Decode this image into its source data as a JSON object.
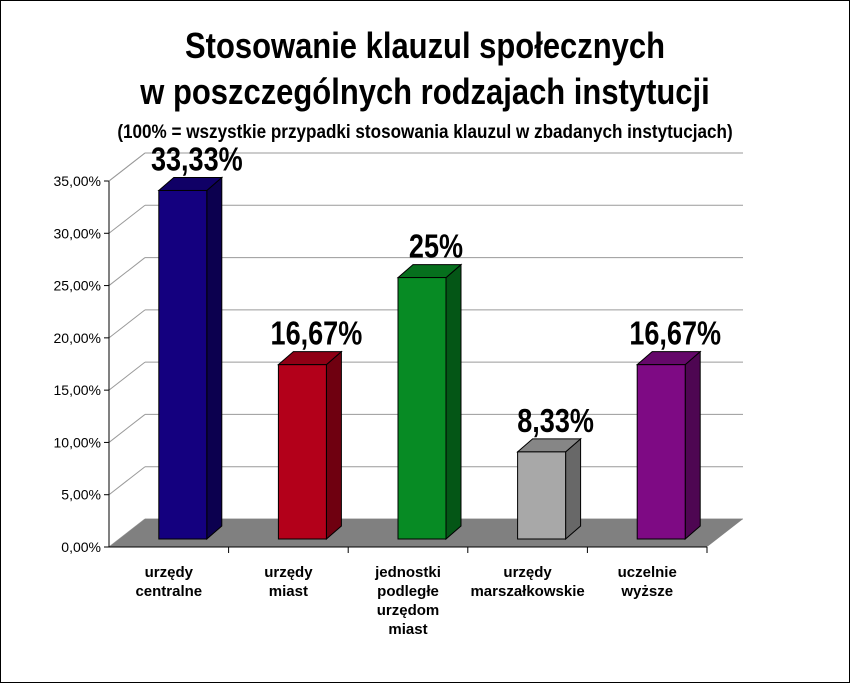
{
  "title_lines": [
    "Stosowanie klauzul społecznych",
    "w poszczególnych rodzajach instytucji",
    "(100% = wszystkie przypadki stosowania klauzul w zbadanych instytucjach)"
  ],
  "chart_data": {
    "type": "bar",
    "title": "Stosowanie klauzul społecznych w poszczególnych rodzajach instytucji",
    "subtitle": "(100% = wszystkie przypadki stosowania klauzul w zbadanych instytucjach)",
    "categories": [
      [
        "urzędy",
        "centralne"
      ],
      [
        "urzędy",
        "miast"
      ],
      [
        "jednostki",
        "podległe",
        "urzędom",
        "miast"
      ],
      [
        "urzędy",
        "marszałkowskie"
      ],
      [
        "uczelnie",
        "wyższe"
      ]
    ],
    "values": [
      33.33,
      16.67,
      25,
      8.33,
      16.67
    ],
    "value_labels": [
      "33,33%",
      "16,67%",
      "25%",
      "8,33%",
      "16,67%"
    ],
    "colors": [
      "#14007f",
      "#b3001a",
      "#078b24",
      "#a8a8a8",
      "#7e0a84"
    ],
    "yticks": [
      "0,00%",
      "5,00%",
      "10,00%",
      "15,00%",
      "20,00%",
      "25,00%",
      "30,00%",
      "35,00%"
    ],
    "ylim": [
      0,
      35
    ],
    "grid": true,
    "style": "3d"
  }
}
